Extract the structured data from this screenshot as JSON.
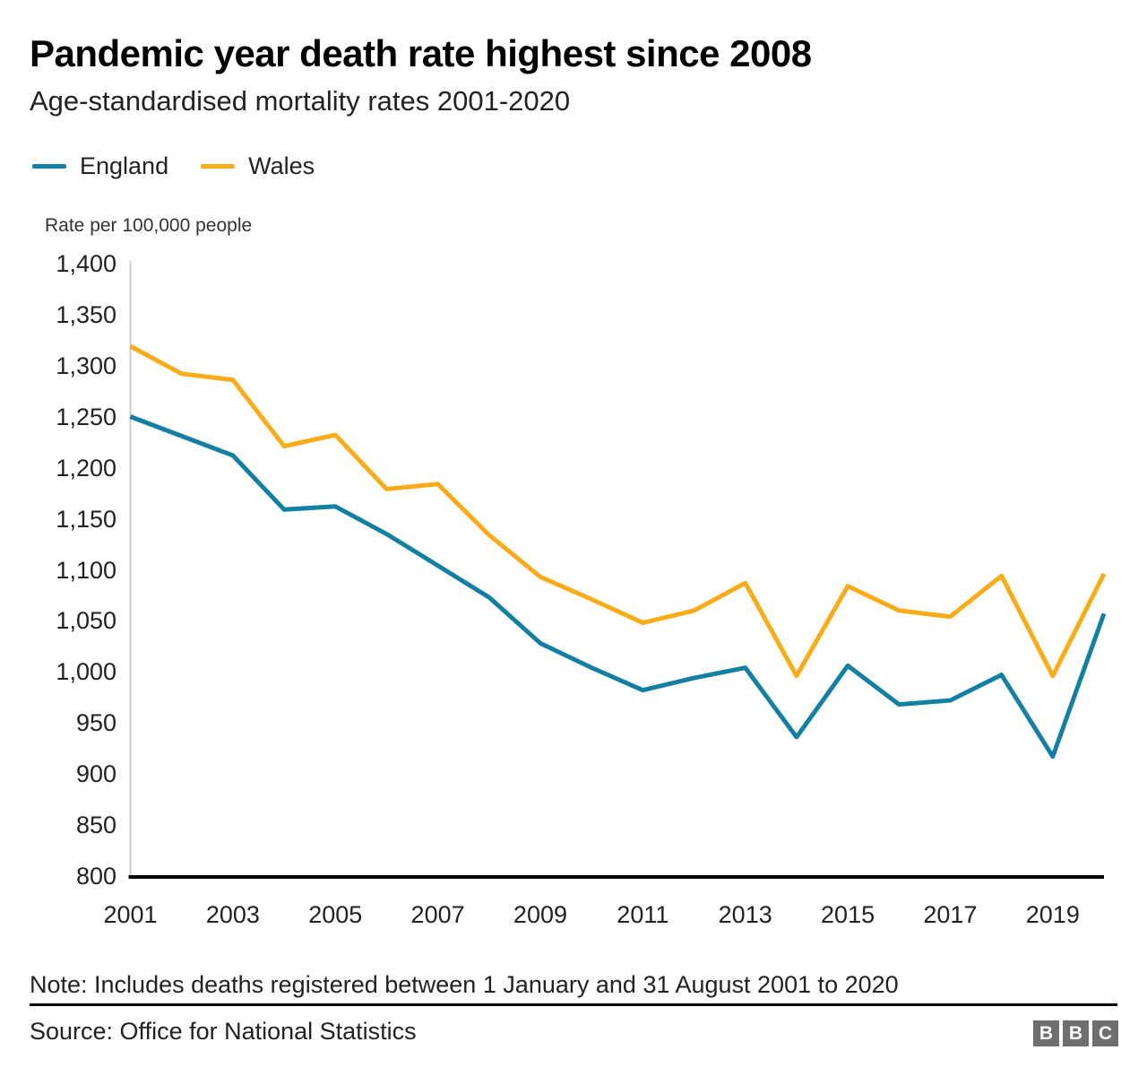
{
  "header": {
    "title": "Pandemic year death rate highest since 2008",
    "subtitle": "Age-standardised mortality rates 2001-2020"
  },
  "chart_data": {
    "type": "line",
    "title": "Pandemic year death rate highest since 2008",
    "subtitle": "Age-standardised mortality rates 2001-2020",
    "unit_label": "Rate per 100,000 people",
    "x": [
      2001,
      2002,
      2003,
      2004,
      2005,
      2006,
      2007,
      2008,
      2009,
      2010,
      2011,
      2012,
      2013,
      2014,
      2015,
      2016,
      2017,
      2018,
      2019,
      2020
    ],
    "series": [
      {
        "name": "England",
        "color": "#1380A1",
        "values": [
          1251,
          1232,
          1213,
          1160,
          1163,
          1136,
          1105,
          1074,
          1029,
          1005,
          983,
          995,
          1005,
          937,
          1007,
          969,
          973,
          998,
          918,
          1058
        ]
      },
      {
        "name": "Wales",
        "color": "#FAAB18",
        "values": [
          1320,
          1293,
          1287,
          1222,
          1233,
          1180,
          1185,
          1135,
          1094,
          1072,
          1049,
          1061,
          1088,
          997,
          1085,
          1061,
          1055,
          1095,
          997,
          1097
        ]
      }
    ],
    "ylim": [
      800,
      1400
    ],
    "y_ticks": [
      "1,400",
      "1,350",
      "1,300",
      "1,250",
      "1,200",
      "1,150",
      "1,100",
      "1,050",
      "1,000",
      "950",
      "900",
      "850",
      "800"
    ],
    "x_ticks": [
      "2001",
      "2003",
      "2005",
      "2007",
      "2009",
      "2011",
      "2013",
      "2015",
      "2017",
      "2019"
    ],
    "legend_position": "top-left",
    "grid": false,
    "axis_color": "#cccccc",
    "baseline_color": "#000000"
  },
  "footer": {
    "note": "Note: Includes deaths registered between 1 January and 31 August 2001 to 2020",
    "source": "Source: Office for National Statistics",
    "logo_letters": [
      "B",
      "B",
      "C"
    ]
  }
}
